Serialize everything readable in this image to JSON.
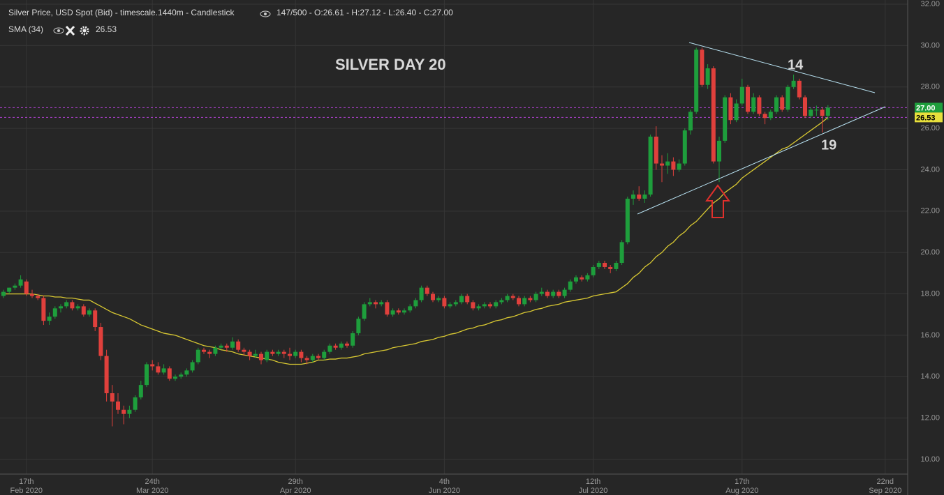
{
  "chart_data": {
    "type": "candlestick",
    "title": "Silver Price, USD Spot (Bid) - timescale.1440m - Candlestick",
    "subtitle": "147/500 - O:26.61 - H:27.12 - L:26.40 - C:27.00",
    "indicator": {
      "name": "SMA (34)",
      "value": "26.53"
    },
    "annotations": [
      {
        "text": "SILVER DAY 20",
        "color": "#8fd3f4"
      },
      {
        "text": "14",
        "color": "#c8e03c"
      },
      {
        "text": "19",
        "color": "#c8e03c"
      }
    ],
    "up_color": "#1e9e3c",
    "down_color": "#e0403c",
    "sma_color": "#d8c832",
    "grid": true,
    "ylim": [
      10,
      32
    ],
    "yticks": [
      {
        "value": 10,
        "label": "10.00"
      },
      {
        "value": 12,
        "label": "12.00"
      },
      {
        "value": 14,
        "label": "14.00"
      },
      {
        "value": 16,
        "label": "16.00"
      },
      {
        "value": 18,
        "label": "18.00"
      },
      {
        "value": 20,
        "label": "20.00"
      },
      {
        "value": 22,
        "label": "22.00"
      },
      {
        "value": 24,
        "label": "24.00"
      },
      {
        "value": 26,
        "label": "26.00"
      },
      {
        "value": 28,
        "label": "28.00"
      },
      {
        "value": 30,
        "label": "30.00"
      },
      {
        "value": 32,
        "label": "32.00"
      }
    ],
    "price_tags": [
      {
        "value": 27,
        "label": "27.00",
        "color": "#1e9e3c"
      },
      {
        "value": 26.53,
        "label": "26.53",
        "color": "#e8e03c"
      }
    ],
    "categories": [
      null,
      null,
      null,
      null,
      [
        "17th",
        "Feb 2020"
      ],
      null,
      null,
      null,
      null,
      null,
      null,
      null,
      null,
      null,
      null,
      null,
      null,
      null,
      null,
      null,
      null,
      null,
      null,
      null,
      null,
      null,
      [
        "24th",
        "Mar 2020"
      ],
      null,
      null,
      null,
      null,
      null,
      null,
      null,
      null,
      null,
      null,
      null,
      null,
      null,
      null,
      null,
      null,
      null,
      null,
      null,
      null,
      null,
      null,
      null,
      null,
      [
        "29th",
        "Apr 2020"
      ],
      null,
      null,
      null,
      null,
      null,
      null,
      null,
      null,
      null,
      null,
      null,
      null,
      null,
      null,
      null,
      null,
      null,
      null,
      null,
      null,
      null,
      null,
      null,
      null,
      null,
      [
        "4th",
        "Jun 2020"
      ],
      null,
      null,
      null,
      null,
      null,
      null,
      null,
      null,
      null,
      null,
      null,
      null,
      null,
      null,
      null,
      null,
      null,
      null,
      null,
      null,
      null,
      null,
      null,
      null,
      null,
      [
        "12th",
        "Jul 2020"
      ],
      null,
      null,
      null,
      null,
      null,
      null,
      null,
      null,
      null,
      null,
      null,
      null,
      null,
      null,
      null,
      null,
      null,
      null,
      null,
      null,
      null,
      null,
      null,
      null,
      null,
      [
        "17th",
        "Aug 2020"
      ],
      null,
      null,
      null,
      null,
      null,
      null,
      null,
      null,
      null,
      null,
      null,
      null,
      null,
      null,
      null,
      null,
      null,
      null,
      null,
      null,
      null,
      null,
      null,
      null,
      [
        "22nd",
        "Sep 2020"
      ],
      null
    ],
    "candles": [
      [
        17.9,
        18.2,
        17.8,
        18.1
      ],
      [
        18.1,
        18.3,
        18.0,
        18.3
      ],
      [
        18.3,
        18.5,
        18.2,
        18.4
      ],
      [
        18.4,
        18.9,
        18.3,
        18.7
      ],
      [
        18.6,
        18.7,
        17.9,
        18.0
      ],
      [
        18.0,
        18.2,
        17.8,
        17.9
      ],
      [
        17.9,
        18.0,
        17.7,
        17.8
      ],
      [
        17.8,
        17.9,
        16.5,
        16.7
      ],
      [
        16.7,
        17.1,
        16.5,
        16.9
      ],
      [
        16.9,
        17.4,
        16.8,
        17.3
      ],
      [
        17.3,
        17.5,
        17.1,
        17.4
      ],
      [
        17.4,
        17.7,
        17.3,
        17.6
      ],
      [
        17.6,
        17.7,
        17.2,
        17.3
      ],
      [
        17.3,
        17.5,
        17.2,
        17.4
      ],
      [
        17.4,
        17.5,
        16.9,
        17.0
      ],
      [
        17.0,
        17.3,
        16.9,
        17.2
      ],
      [
        17.2,
        17.3,
        16.2,
        16.4
      ],
      [
        16.4,
        16.6,
        14.8,
        15.0
      ],
      [
        15.0,
        15.3,
        12.8,
        13.2
      ],
      [
        13.2,
        13.6,
        11.6,
        12.8
      ],
      [
        12.8,
        13.2,
        12.2,
        12.4
      ],
      [
        12.4,
        12.6,
        11.7,
        12.2
      ],
      [
        12.2,
        12.6,
        12.0,
        12.4
      ],
      [
        12.4,
        13.1,
        12.3,
        13.0
      ],
      [
        13.0,
        13.8,
        12.9,
        13.6
      ],
      [
        13.6,
        14.7,
        13.5,
        14.6
      ],
      [
        14.6,
        14.8,
        14.3,
        14.5
      ],
      [
        14.5,
        14.7,
        14.1,
        14.2
      ],
      [
        14.2,
        14.6,
        14.1,
        14.4
      ],
      [
        14.4,
        14.5,
        13.8,
        13.9
      ],
      [
        13.9,
        14.1,
        13.8,
        14.0
      ],
      [
        14.0,
        14.2,
        13.9,
        14.1
      ],
      [
        14.1,
        14.4,
        14.0,
        14.3
      ],
      [
        14.3,
        14.8,
        14.2,
        14.7
      ],
      [
        14.7,
        15.4,
        14.6,
        15.3
      ],
      [
        15.3,
        15.4,
        15.1,
        15.2
      ],
      [
        15.2,
        15.3,
        14.9,
        15.1
      ],
      [
        15.1,
        15.5,
        15.0,
        15.4
      ],
      [
        15.4,
        15.6,
        15.3,
        15.5
      ],
      [
        15.5,
        15.6,
        15.2,
        15.4
      ],
      [
        15.4,
        15.9,
        15.3,
        15.7
      ],
      [
        15.7,
        15.8,
        15.2,
        15.3
      ],
      [
        15.3,
        15.4,
        15.0,
        15.2
      ],
      [
        15.2,
        15.3,
        14.8,
        15.0
      ],
      [
        15.0,
        15.3,
        14.9,
        15.1
      ],
      [
        15.1,
        15.2,
        14.6,
        14.8
      ],
      [
        14.8,
        15.3,
        14.7,
        15.2
      ],
      [
        15.2,
        15.3,
        15.0,
        15.1
      ],
      [
        15.1,
        15.3,
        15.0,
        15.2
      ],
      [
        15.2,
        15.3,
        14.9,
        15.1
      ],
      [
        15.1,
        15.4,
        14.8,
        15.0
      ],
      [
        15.0,
        15.3,
        14.9,
        15.2
      ],
      [
        15.2,
        15.3,
        14.7,
        14.9
      ],
      [
        14.9,
        15.0,
        14.6,
        14.8
      ],
      [
        14.8,
        15.1,
        14.7,
        15.0
      ],
      [
        15.0,
        15.1,
        14.8,
        14.9
      ],
      [
        14.9,
        15.3,
        14.8,
        15.2
      ],
      [
        15.2,
        15.6,
        15.1,
        15.5
      ],
      [
        15.5,
        15.6,
        15.3,
        15.4
      ],
      [
        15.4,
        15.7,
        15.3,
        15.6
      ],
      [
        15.6,
        15.7,
        15.4,
        15.5
      ],
      [
        15.5,
        16.2,
        15.4,
        16.1
      ],
      [
        16.1,
        16.9,
        16.0,
        16.8
      ],
      [
        16.8,
        17.6,
        16.7,
        17.5
      ],
      [
        17.5,
        17.8,
        17.4,
        17.6
      ],
      [
        17.6,
        17.7,
        17.3,
        17.5
      ],
      [
        17.5,
        17.7,
        17.4,
        17.6
      ],
      [
        17.6,
        17.7,
        16.9,
        17.0
      ],
      [
        17.0,
        17.3,
        16.9,
        17.2
      ],
      [
        17.2,
        17.3,
        17.0,
        17.1
      ],
      [
        17.1,
        17.3,
        17.0,
        17.2
      ],
      [
        17.2,
        17.5,
        17.1,
        17.4
      ],
      [
        17.4,
        17.8,
        17.3,
        17.7
      ],
      [
        17.7,
        18.4,
        17.6,
        18.3
      ],
      [
        18.3,
        18.4,
        17.9,
        18.0
      ],
      [
        18.0,
        18.1,
        17.6,
        17.7
      ],
      [
        17.7,
        17.9,
        17.6,
        17.8
      ],
      [
        17.8,
        17.9,
        17.3,
        17.4
      ],
      [
        17.4,
        17.6,
        17.3,
        17.5
      ],
      [
        17.5,
        17.7,
        17.4,
        17.6
      ],
      [
        17.6,
        18.0,
        17.5,
        17.9
      ],
      [
        17.9,
        18.0,
        17.5,
        17.6
      ],
      [
        17.6,
        17.7,
        17.2,
        17.3
      ],
      [
        17.3,
        17.5,
        17.2,
        17.4
      ],
      [
        17.4,
        17.6,
        17.3,
        17.5
      ],
      [
        17.5,
        17.6,
        17.3,
        17.4
      ],
      [
        17.4,
        17.7,
        17.3,
        17.6
      ],
      [
        17.6,
        17.8,
        17.5,
        17.7
      ],
      [
        17.7,
        18.0,
        17.6,
        17.9
      ],
      [
        17.9,
        18.0,
        17.7,
        17.8
      ],
      [
        17.8,
        17.9,
        17.4,
        17.5
      ],
      [
        17.5,
        17.9,
        17.4,
        17.8
      ],
      [
        17.8,
        17.9,
        17.6,
        17.7
      ],
      [
        17.7,
        18.1,
        17.6,
        18.0
      ],
      [
        18.0,
        18.3,
        17.9,
        18.1
      ],
      [
        18.1,
        18.2,
        17.8,
        17.9
      ],
      [
        17.9,
        18.2,
        17.8,
        18.1
      ],
      [
        18.1,
        18.2,
        17.8,
        17.9
      ],
      [
        17.9,
        18.3,
        17.8,
        18.2
      ],
      [
        18.2,
        18.7,
        18.1,
        18.6
      ],
      [
        18.6,
        18.9,
        18.5,
        18.8
      ],
      [
        18.8,
        18.9,
        18.6,
        18.7
      ],
      [
        18.7,
        19.0,
        18.6,
        18.9
      ],
      [
        18.9,
        19.4,
        18.8,
        19.3
      ],
      [
        19.3,
        19.6,
        19.2,
        19.5
      ],
      [
        19.5,
        19.6,
        19.2,
        19.3
      ],
      [
        19.3,
        19.4,
        19.0,
        19.2
      ],
      [
        19.2,
        19.6,
        19.1,
        19.5
      ],
      [
        19.5,
        20.6,
        19.4,
        20.5
      ],
      [
        20.5,
        22.7,
        20.4,
        22.6
      ],
      [
        22.6,
        23.0,
        22.3,
        22.8
      ],
      [
        22.8,
        23.2,
        22.5,
        22.6
      ],
      [
        22.6,
        23.0,
        22.4,
        22.8
      ],
      [
        22.8,
        25.7,
        22.7,
        25.6
      ],
      [
        25.6,
        26.1,
        24.0,
        24.3
      ],
      [
        24.3,
        24.7,
        23.4,
        24.2
      ],
      [
        24.2,
        24.8,
        23.8,
        24.4
      ],
      [
        24.4,
        24.6,
        23.7,
        24.0
      ],
      [
        24.0,
        24.5,
        23.9,
        24.3
      ],
      [
        24.3,
        26.0,
        24.2,
        25.9
      ],
      [
        25.9,
        26.9,
        25.7,
        26.8
      ],
      [
        26.8,
        29.9,
        26.7,
        29.8
      ],
      [
        29.8,
        29.9,
        28.0,
        28.1
      ],
      [
        28.1,
        29.1,
        27.9,
        28.9
      ],
      [
        28.9,
        29.0,
        24.3,
        24.4
      ],
      [
        24.4,
        25.6,
        23.4,
        25.4
      ],
      [
        25.4,
        27.6,
        25.3,
        27.5
      ],
      [
        27.5,
        27.7,
        26.2,
        26.4
      ],
      [
        26.4,
        27.4,
        26.3,
        27.2
      ],
      [
        27.2,
        28.4,
        27.1,
        28.0
      ],
      [
        28.0,
        28.1,
        26.7,
        26.8
      ],
      [
        26.8,
        27.7,
        26.7,
        27.5
      ],
      [
        27.5,
        27.6,
        26.6,
        26.7
      ],
      [
        26.7,
        26.8,
        26.2,
        26.5
      ],
      [
        26.5,
        26.9,
        26.4,
        26.8
      ],
      [
        26.8,
        27.6,
        26.7,
        27.5
      ],
      [
        27.5,
        27.6,
        26.8,
        26.9
      ],
      [
        26.9,
        28.1,
        26.8,
        28.0
      ],
      [
        28.0,
        28.6,
        27.9,
        28.3
      ],
      [
        28.3,
        28.4,
        27.4,
        27.5
      ],
      [
        27.5,
        27.6,
        26.5,
        26.6
      ],
      [
        26.6,
        27.0,
        26.5,
        26.9
      ],
      [
        26.9,
        27.1,
        26.6,
        26.9
      ],
      [
        26.9,
        27.0,
        25.8,
        26.6
      ],
      [
        26.61,
        27.12,
        26.4,
        27.0
      ],
      null,
      null,
      null,
      null,
      null,
      null,
      null,
      null,
      null,
      null,
      null
    ],
    "sma": [
      18.0,
      18.0,
      18.0,
      18.0,
      18.0,
      18.0,
      17.95,
      17.9,
      17.9,
      17.85,
      17.85,
      17.8,
      17.8,
      17.75,
      17.7,
      17.7,
      17.55,
      17.4,
      17.25,
      17.1,
      17.0,
      16.9,
      16.8,
      16.65,
      16.5,
      16.4,
      16.3,
      16.2,
      16.1,
      16.05,
      16.0,
      15.9,
      15.8,
      15.7,
      15.6,
      15.5,
      15.45,
      15.4,
      15.3,
      15.25,
      15.2,
      15.1,
      15.05,
      15.0,
      14.95,
      14.9,
      14.85,
      14.8,
      14.7,
      14.65,
      14.6,
      14.6,
      14.6,
      14.65,
      14.7,
      14.8,
      14.8,
      14.85,
      14.85,
      14.9,
      14.9,
      14.95,
      15.0,
      15.1,
      15.15,
      15.2,
      15.25,
      15.3,
      15.4,
      15.45,
      15.5,
      15.55,
      15.6,
      15.7,
      15.75,
      15.8,
      15.9,
      15.95,
      16.05,
      16.1,
      16.2,
      16.3,
      16.35,
      16.45,
      16.5,
      16.6,
      16.7,
      16.75,
      16.85,
      16.9,
      17.0,
      17.1,
      17.15,
      17.25,
      17.3,
      17.4,
      17.45,
      17.5,
      17.6,
      17.65,
      17.7,
      17.75,
      17.8,
      17.9,
      17.95,
      18.0,
      18.05,
      18.1,
      18.3,
      18.5,
      18.8,
      19.0,
      19.3,
      19.5,
      19.8,
      20.0,
      20.3,
      20.5,
      20.8,
      21.0,
      21.3,
      21.5,
      21.8,
      22.1,
      22.4,
      22.6,
      22.9,
      23.1,
      23.3,
      23.6,
      23.8,
      24.0,
      24.2,
      24.4,
      24.6,
      24.8,
      25.0,
      25.1,
      25.3,
      25.5,
      25.7,
      25.9,
      26.1,
      26.3,
      26.53,
      null,
      null,
      null,
      null,
      null,
      null,
      null,
      null,
      null,
      null,
      null
    ]
  }
}
